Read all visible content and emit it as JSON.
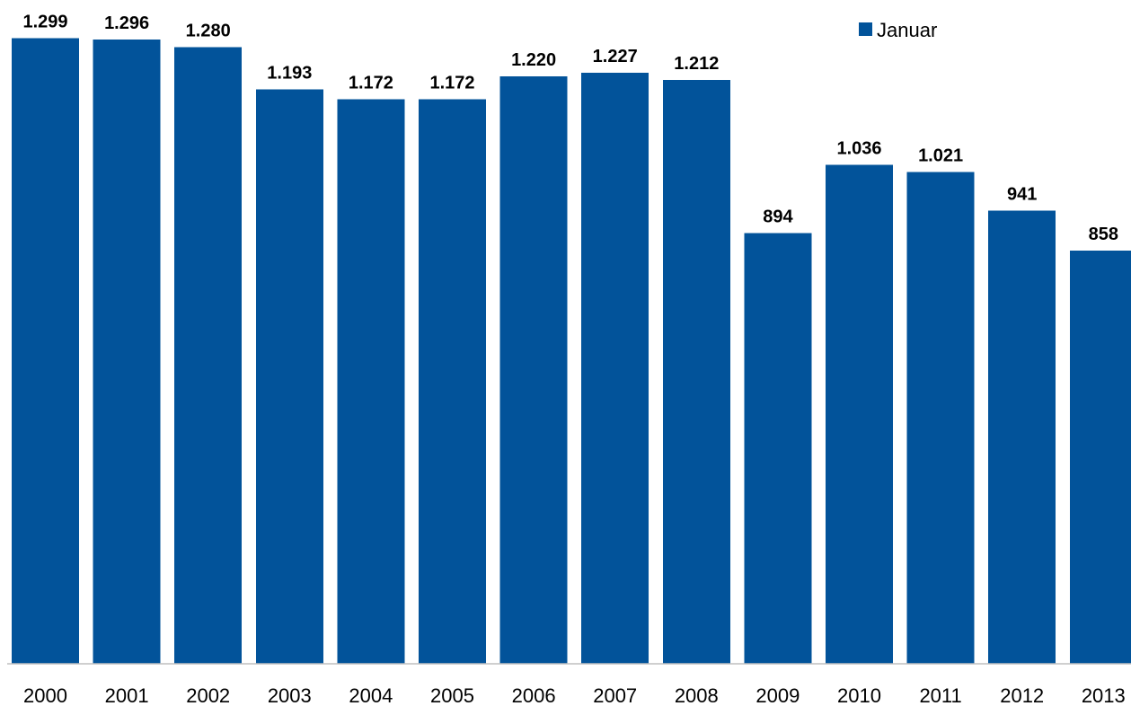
{
  "chart_data": {
    "type": "bar",
    "categories": [
      "2000",
      "2001",
      "2002",
      "2003",
      "2004",
      "2005",
      "2006",
      "2007",
      "2008",
      "2009",
      "2010",
      "2011",
      "2012",
      "2013"
    ],
    "series": [
      {
        "name": "Januar",
        "values": [
          1299,
          1296,
          1280,
          1193,
          1172,
          1172,
          1220,
          1227,
          1212,
          894,
          1036,
          1021,
          941,
          858
        ],
        "labels": [
          "1.299",
          "1.296",
          "1.280",
          "1.193",
          "1.172",
          "1.172",
          "1.220",
          "1.227",
          "1.212",
          "894",
          "1.036",
          "1.021",
          "941",
          "858"
        ],
        "color": "#02539A"
      }
    ],
    "ylim": [
      0,
      1300
    ],
    "grid": false,
    "legend_position": "top-right"
  }
}
